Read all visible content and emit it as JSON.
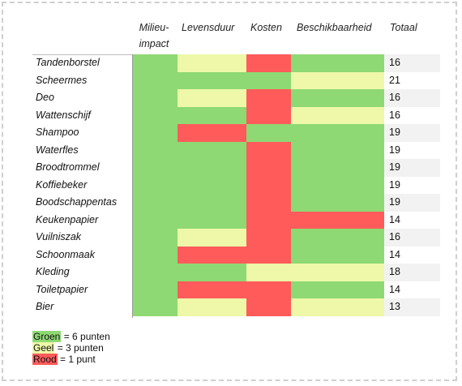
{
  "headers": {
    "milieu_line1": "Milieu-",
    "milieu_line2": "impact",
    "levensduur": "Levensduur",
    "kosten": "Kosten",
    "beschikbaarheid": "Beschikbaarheid",
    "totaal": "Totaal"
  },
  "colors": {
    "groen": "#8ED973",
    "geel": "#EEF8A8",
    "rood": "#FF5B5B",
    "stripe": "#F2F2F2"
  },
  "rows": [
    {
      "name": "Tandenborstel",
      "milieu": "groen",
      "levensduur": "geel",
      "kosten": "rood",
      "beschikbaarheid": "groen",
      "totaal": "16"
    },
    {
      "name": "Scheermes",
      "milieu": "groen",
      "levensduur": "groen",
      "kosten": "groen",
      "beschikbaarheid": "geel",
      "totaal": "21"
    },
    {
      "name": "Deo",
      "milieu": "groen",
      "levensduur": "geel",
      "kosten": "rood",
      "beschikbaarheid": "groen",
      "totaal": "16"
    },
    {
      "name": "Wattenschijf",
      "milieu": "groen",
      "levensduur": "groen",
      "kosten": "rood",
      "beschikbaarheid": "geel",
      "totaal": "16"
    },
    {
      "name": "Shampoo",
      "milieu": "groen",
      "levensduur": "rood",
      "kosten": "groen",
      "beschikbaarheid": "groen",
      "totaal": "19"
    },
    {
      "name": "Waterfles",
      "milieu": "groen",
      "levensduur": "groen",
      "kosten": "rood",
      "beschikbaarheid": "groen",
      "totaal": "19"
    },
    {
      "name": "Broodtrommel",
      "milieu": "groen",
      "levensduur": "groen",
      "kosten": "rood",
      "beschikbaarheid": "groen",
      "totaal": "19"
    },
    {
      "name": "Koffiebeker",
      "milieu": "groen",
      "levensduur": "groen",
      "kosten": "rood",
      "beschikbaarheid": "groen",
      "totaal": "19"
    },
    {
      "name": "Boodschappentas",
      "milieu": "groen",
      "levensduur": "groen",
      "kosten": "rood",
      "beschikbaarheid": "groen",
      "totaal": "19"
    },
    {
      "name": "Keukenpapier",
      "milieu": "groen",
      "levensduur": "groen",
      "kosten": "rood",
      "beschikbaarheid": "rood",
      "totaal": "14"
    },
    {
      "name": "Vuilniszak",
      "milieu": "groen",
      "levensduur": "geel",
      "kosten": "rood",
      "beschikbaarheid": "groen",
      "totaal": "16"
    },
    {
      "name": "Schoonmaak",
      "milieu": "groen",
      "levensduur": "rood",
      "kosten": "rood",
      "beschikbaarheid": "groen",
      "totaal": "14"
    },
    {
      "name": "Kleding",
      "milieu": "groen",
      "levensduur": "groen",
      "kosten": "geel",
      "beschikbaarheid": "geel",
      "totaal": "18"
    },
    {
      "name": "Toiletpapier",
      "milieu": "groen",
      "levensduur": "rood",
      "kosten": "rood",
      "beschikbaarheid": "groen",
      "totaal": "14"
    },
    {
      "name": "Bier",
      "milieu": "groen",
      "levensduur": "geel",
      "kosten": "rood",
      "beschikbaarheid": "geel",
      "totaal": "13"
    }
  ],
  "legend": {
    "groen_word": "Groen",
    "groen_rest": " = 6 punten",
    "geel_word": "Geel",
    "geel_rest": " = 3 punten",
    "rood_word": "Rood",
    "rood_rest": " = 1 punt"
  }
}
